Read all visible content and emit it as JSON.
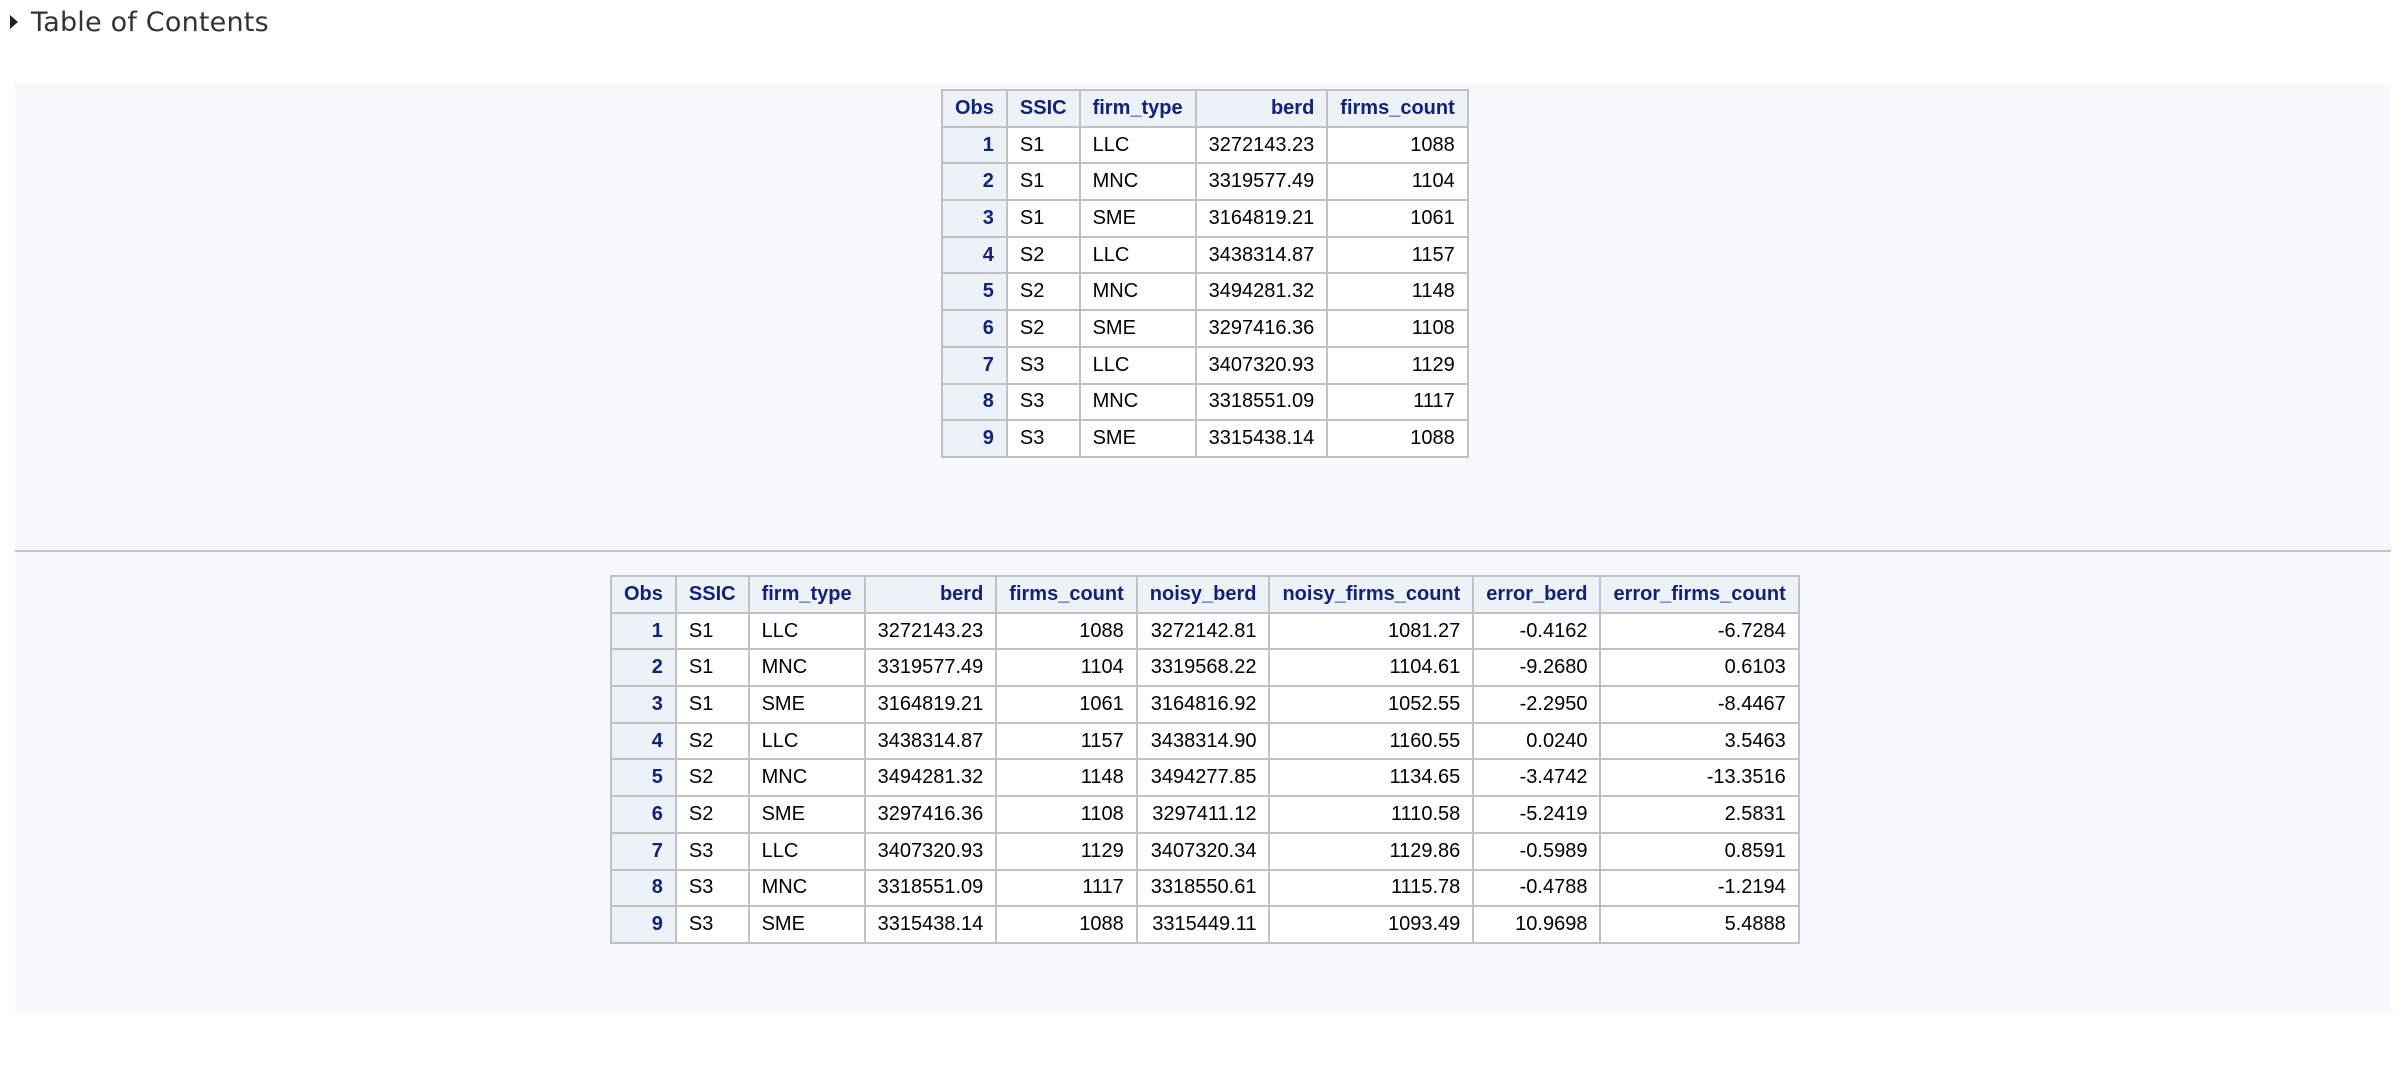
{
  "toc": {
    "label": "Table of Contents",
    "icon": "triangle-right-icon"
  },
  "colors": {
    "header_bg": "#edf2f9",
    "header_text": "#112277",
    "panel_bg": "#f6f8fc",
    "border": "#c1c1c1"
  },
  "table1": {
    "headers": [
      "Obs",
      "SSIC",
      "firm_type",
      "berd",
      "firms_count"
    ],
    "rows": [
      [
        "1",
        "S1",
        "LLC",
        "3272143.23",
        "1088"
      ],
      [
        "2",
        "S1",
        "MNC",
        "3319577.49",
        "1104"
      ],
      [
        "3",
        "S1",
        "SME",
        "3164819.21",
        "1061"
      ],
      [
        "4",
        "S2",
        "LLC",
        "3438314.87",
        "1157"
      ],
      [
        "5",
        "S2",
        "MNC",
        "3494281.32",
        "1148"
      ],
      [
        "6",
        "S2",
        "SME",
        "3297416.36",
        "1108"
      ],
      [
        "7",
        "S3",
        "LLC",
        "3407320.93",
        "1129"
      ],
      [
        "8",
        "S3",
        "MNC",
        "3318551.09",
        "1117"
      ],
      [
        "9",
        "S3",
        "SME",
        "3315438.14",
        "1088"
      ]
    ]
  },
  "table2": {
    "headers": [
      "Obs",
      "SSIC",
      "firm_type",
      "berd",
      "firms_count",
      "noisy_berd",
      "noisy_firms_count",
      "error_berd",
      "error_firms_count"
    ],
    "rows": [
      [
        "1",
        "S1",
        "LLC",
        "3272143.23",
        "1088",
        "3272142.81",
        "1081.27",
        "-0.4162",
        "-6.7284"
      ],
      [
        "2",
        "S1",
        "MNC",
        "3319577.49",
        "1104",
        "3319568.22",
        "1104.61",
        "-9.2680",
        "0.6103"
      ],
      [
        "3",
        "S1",
        "SME",
        "3164819.21",
        "1061",
        "3164816.92",
        "1052.55",
        "-2.2950",
        "-8.4467"
      ],
      [
        "4",
        "S2",
        "LLC",
        "3438314.87",
        "1157",
        "3438314.90",
        "1160.55",
        "0.0240",
        "3.5463"
      ],
      [
        "5",
        "S2",
        "MNC",
        "3494281.32",
        "1148",
        "3494277.85",
        "1134.65",
        "-3.4742",
        "-13.3516"
      ],
      [
        "6",
        "S2",
        "SME",
        "3297416.36",
        "1108",
        "3297411.12",
        "1110.58",
        "-5.2419",
        "2.5831"
      ],
      [
        "7",
        "S3",
        "LLC",
        "3407320.93",
        "1129",
        "3407320.34",
        "1129.86",
        "-0.5989",
        "0.8591"
      ],
      [
        "8",
        "S3",
        "MNC",
        "3318551.09",
        "1117",
        "3318550.61",
        "1115.78",
        "-0.4788",
        "-1.2194"
      ],
      [
        "9",
        "S3",
        "SME",
        "3315438.14",
        "1088",
        "3315449.11",
        "1093.49",
        "10.9698",
        "5.4888"
      ]
    ]
  }
}
